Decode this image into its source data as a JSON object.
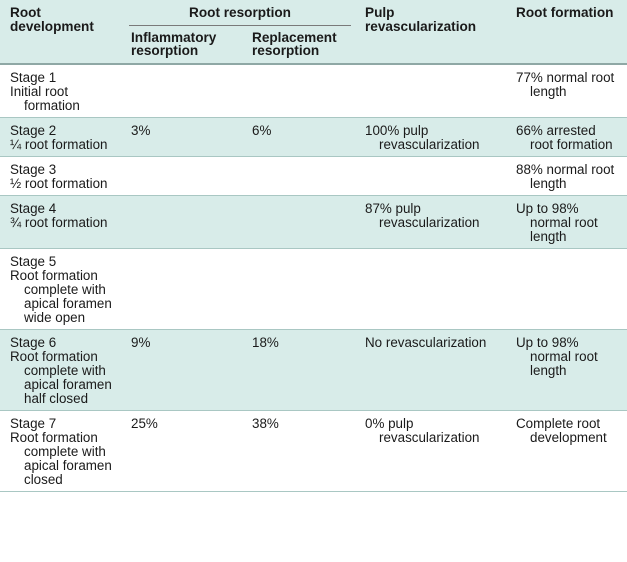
{
  "header": {
    "col1": "Root development",
    "resorption_group": "Root resorption",
    "inflammatory": "Inflammatory resorption",
    "replacement": "Replacement resorption",
    "pulp": "Pulp revascularization",
    "formation": "Root formation"
  },
  "rows": [
    {
      "stage": "Stage 1",
      "desc": "Initial root formation",
      "inflammatory": "",
      "replacement": "",
      "pulp": "",
      "formation": "77% normal root length"
    },
    {
      "stage": "Stage 2",
      "desc": "¼ root formation",
      "inflammatory": "3%",
      "replacement": "6%",
      "pulp": "100% pulp revascularization",
      "formation": "66% arrested root formation"
    },
    {
      "stage": "Stage 3",
      "desc": "½ root formation",
      "inflammatory": "",
      "replacement": "",
      "pulp": "",
      "formation": "88% normal root length"
    },
    {
      "stage": "Stage 4",
      "desc": "¾ root formation",
      "inflammatory": "",
      "replacement": "",
      "pulp": "87% pulp revascularization",
      "formation": "Up to 98% normal root length"
    },
    {
      "stage": "Stage 5",
      "desc": "Root formation complete with apical foramen wide open",
      "inflammatory": "",
      "replacement": "",
      "pulp": "",
      "formation": ""
    },
    {
      "stage": "Stage 6",
      "desc": "Root formation complete with apical foramen half closed",
      "inflammatory": "9%",
      "replacement": "18%",
      "pulp": "No revascularization",
      "formation": "Up to 98% normal root length"
    },
    {
      "stage": "Stage 7",
      "desc": "Root formation complete with apical foramen closed",
      "inflammatory": "25%",
      "replacement": "38%",
      "pulp": "0% pulp revascularization",
      "formation": "Complete root development"
    }
  ]
}
